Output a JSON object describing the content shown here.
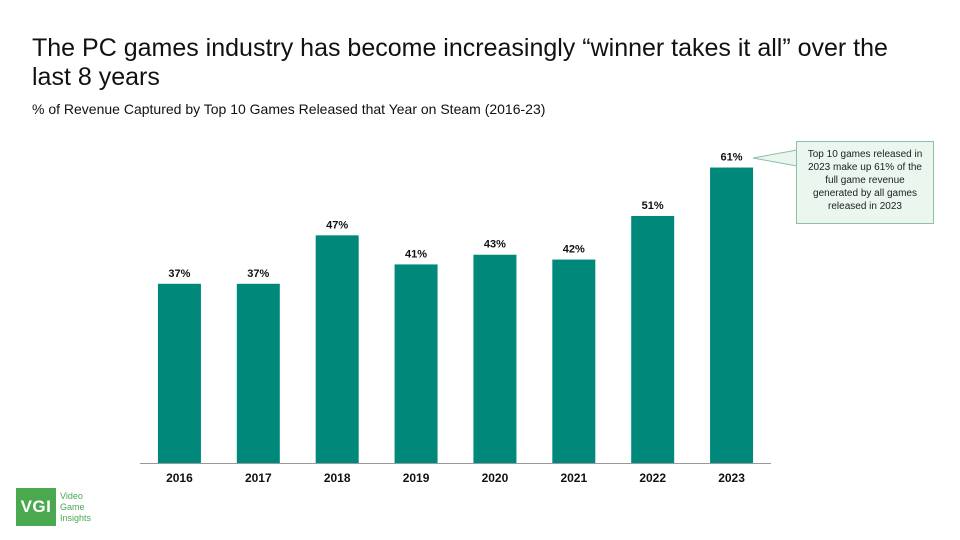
{
  "title": "The PC games industry has become increasingly “winner takes it all” over the last 8 years",
  "subtitle": "% of Revenue Captured by Top 10 Games Released that Year on Steam (2016-23)",
  "callout": "Top 10 games released in 2023 make up 61% of the full game revenue generated by all games released in 2023",
  "logo": {
    "mark": "VGI",
    "line1": "Video",
    "line2": "Game",
    "line3": "Insights"
  },
  "colors": {
    "bar": "#00897b",
    "axis": "#999999",
    "logo": "#4aa84f"
  },
  "chart_data": {
    "type": "bar",
    "title": "% of Revenue Captured by Top 10 Games Released that Year on Steam (2016-23)",
    "categories": [
      "2016",
      "2017",
      "2018",
      "2019",
      "2020",
      "2021",
      "2022",
      "2023"
    ],
    "values": [
      37,
      37,
      47,
      41,
      43,
      42,
      51,
      61
    ],
    "value_labels": [
      "37%",
      "37%",
      "47%",
      "41%",
      "43%",
      "42%",
      "51%",
      "61%"
    ],
    "xlabel": "",
    "ylabel": "",
    "ylim": [
      0,
      64
    ],
    "grid": false,
    "legend": "none"
  }
}
